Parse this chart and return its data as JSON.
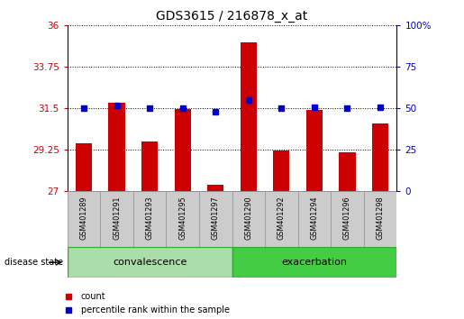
{
  "title": "GDS3615 / 216878_x_at",
  "samples": [
    "GSM401289",
    "GSM401291",
    "GSM401293",
    "GSM401295",
    "GSM401297",
    "GSM401290",
    "GSM401292",
    "GSM401294",
    "GSM401296",
    "GSM401298"
  ],
  "groups": [
    "convalescence",
    "convalescence",
    "convalescence",
    "convalescence",
    "convalescence",
    "exacerbation",
    "exacerbation",
    "exacerbation",
    "exacerbation",
    "exacerbation"
  ],
  "counts": [
    29.6,
    31.8,
    29.7,
    31.45,
    27.35,
    35.1,
    29.2,
    31.4,
    29.1,
    30.7
  ],
  "percentiles": [
    50,
    52,
    50,
    50,
    48,
    55,
    50,
    51,
    50,
    51
  ],
  "ymin": 27,
  "ymax": 36,
  "yticks": [
    27,
    29.25,
    31.5,
    33.75,
    36
  ],
  "ytick_labels": [
    "27",
    "29.25",
    "31.5",
    "33.75",
    "36"
  ],
  "y2min": 0,
  "y2max": 100,
  "y2ticks": [
    0,
    25,
    50,
    75,
    100
  ],
  "y2tick_labels": [
    "0",
    "25",
    "50",
    "75",
    "100%"
  ],
  "bar_color": "#cc0000",
  "dot_color": "#0000cc",
  "convalescence_color": "#aaddaa",
  "exacerbation_color": "#44cc44",
  "sample_box_color": "#cccccc",
  "sample_box_edge": "#999999",
  "legend_count_color": "#cc0000",
  "legend_pct_color": "#0000cc",
  "tick_label_color_left": "#cc0000",
  "tick_label_color_right": "#0000cc"
}
